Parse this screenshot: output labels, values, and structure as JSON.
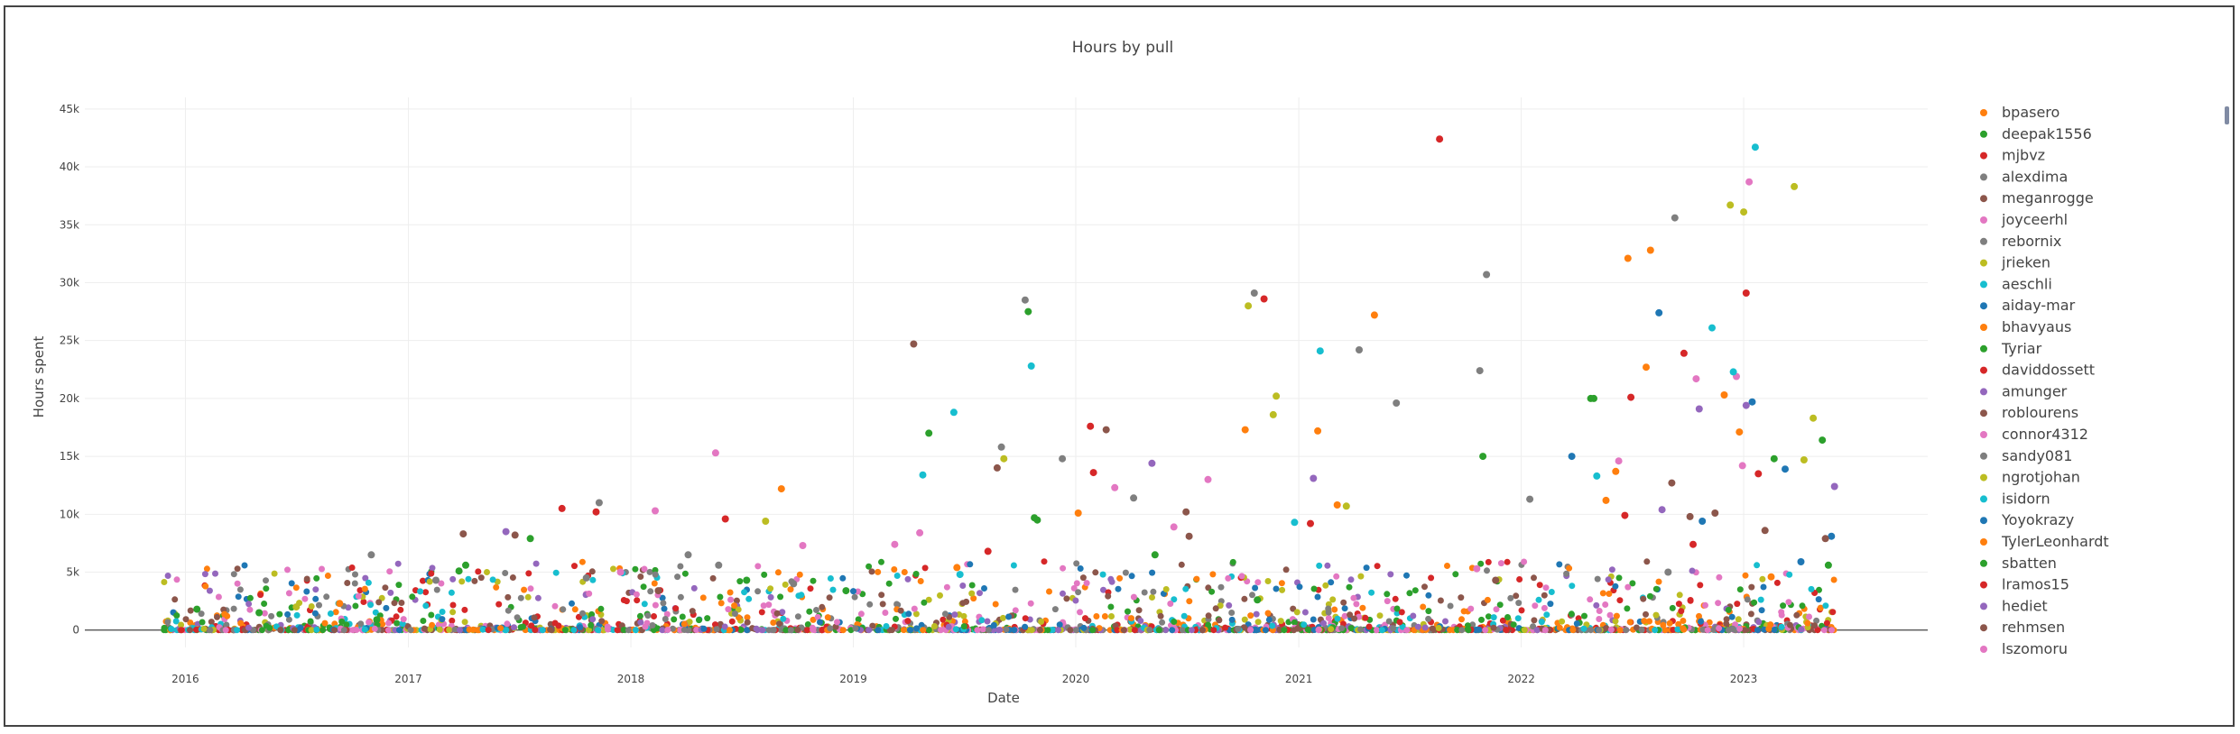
{
  "colors": {
    "palette": [
      "#ff7f0e",
      "#2ca02c",
      "#d62728",
      "#7f7f7f",
      "#8c564b",
      "#e377c2",
      "#7f7f7f",
      "#bcbd22",
      "#17becf",
      "#1f77b4",
      "#ff7f0e",
      "#2ca02c",
      "#d62728",
      "#9467bd",
      "#8c564b",
      "#e377c2",
      "#7f7f7f",
      "#bcbd22",
      "#17becf",
      "#1f77b4",
      "#ff7f0e",
      "#2ca02c",
      "#d62728",
      "#9467bd",
      "#8c564b",
      "#e377c2"
    ]
  },
  "chart_data": {
    "type": "scatter",
    "title": "Hours by pull",
    "xlabel": "Date",
    "ylabel": "Hours spent",
    "x_range": [
      "2015-07-20",
      "2023-10-30"
    ],
    "ylim": [
      -1500,
      46000
    ],
    "x_tick_labels": [
      {
        "date": "2016-01-01",
        "label": "2016"
      },
      {
        "date": "2017-01-01",
        "label": "2017"
      },
      {
        "date": "2018-01-01",
        "label": "2018"
      },
      {
        "date": "2019-01-01",
        "label": "2019"
      },
      {
        "date": "2020-01-01",
        "label": "2020"
      },
      {
        "date": "2021-01-01",
        "label": "2021"
      },
      {
        "date": "2022-01-01",
        "label": "2022"
      },
      {
        "date": "2023-01-01",
        "label": "2023"
      }
    ],
    "y_tick_labels": [
      {
        "value": 0,
        "label": "0"
      },
      {
        "value": 5000,
        "label": "5k"
      },
      {
        "value": 10000,
        "label": "10k"
      },
      {
        "value": 15000,
        "label": "15k"
      },
      {
        "value": 20000,
        "label": "20k"
      },
      {
        "value": 25000,
        "label": "25k"
      },
      {
        "value": 30000,
        "label": "30k"
      },
      {
        "value": 35000,
        "label": "35k"
      },
      {
        "value": 40000,
        "label": "40k"
      },
      {
        "value": 45000,
        "label": "45k"
      }
    ],
    "grid": true,
    "legend_position": "right",
    "series": [
      {
        "name": "bpasero",
        "points": [
          [
            "2016-09-10",
            2300
          ],
          [
            "2018-09-05",
            12200
          ],
          [
            "2019-06-20",
            5400
          ],
          [
            "2020-10-05",
            17300
          ],
          [
            "2021-05-05",
            27200
          ],
          [
            "2022-06-25",
            32100
          ],
          [
            "2022-08-01",
            32800
          ],
          [
            "2022-11-30",
            20300
          ]
        ]
      },
      {
        "name": "deepak1556",
        "points": [
          [
            "2016-05-01",
            1500
          ],
          [
            "2017-04-05",
            5600
          ],
          [
            "2018-07-10",
            4300
          ],
          [
            "2019-05-05",
            17000
          ],
          [
            "2019-10-15",
            27500
          ],
          [
            "2021-10-30",
            15000
          ],
          [
            "2022-04-25",
            20000
          ],
          [
            "2023-05-10",
            16400
          ]
        ]
      },
      {
        "name": "mjbvz",
        "points": [
          [
            "2017-09-10",
            10500
          ],
          [
            "2017-11-05",
            10200
          ],
          [
            "2018-06-05",
            9600
          ],
          [
            "2019-08-10",
            6800
          ],
          [
            "2020-11-05",
            28600
          ],
          [
            "2021-08-20",
            42400
          ],
          [
            "2022-09-25",
            23900
          ],
          [
            "2023-01-05",
            29100
          ]
        ]
      },
      {
        "name": "alexdima",
        "points": [
          [
            "2016-11-01",
            6500
          ],
          [
            "2017-11-10",
            11000
          ],
          [
            "2018-05-25",
            5600
          ],
          [
            "2019-12-10",
            14800
          ],
          [
            "2021-04-10",
            24200
          ],
          [
            "2021-11-05",
            30700
          ],
          [
            "2022-08-30",
            5000
          ]
        ]
      },
      {
        "name": "meganrogge",
        "points": [
          [
            "2019-04-10",
            24700
          ],
          [
            "2020-07-05",
            8100
          ],
          [
            "2021-11-20",
            4300
          ],
          [
            "2022-10-05",
            9800
          ],
          [
            "2023-02-05",
            8600
          ]
        ]
      },
      {
        "name": "joyceerhl",
        "points": [
          [
            "2018-05-20",
            15300
          ],
          [
            "2018-10-10",
            7300
          ],
          [
            "2020-06-10",
            8900
          ],
          [
            "2022-06-10",
            14600
          ],
          [
            "2022-12-20",
            21900
          ],
          [
            "2023-01-10",
            38700
          ]
        ]
      },
      {
        "name": "rebornix",
        "points": [
          [
            "2017-10-20",
            4500
          ],
          [
            "2018-09-25",
            4000
          ],
          [
            "2019-10-10",
            28500
          ],
          [
            "2020-10-20",
            29100
          ],
          [
            "2021-10-25",
            22400
          ],
          [
            "2022-09-10",
            35600
          ]
        ]
      },
      {
        "name": "jrieken",
        "points": [
          [
            "2016-07-01",
            2000
          ],
          [
            "2018-08-10",
            9400
          ],
          [
            "2019-09-05",
            14800
          ],
          [
            "2020-11-25",
            20200
          ],
          [
            "2022-12-10",
            36700
          ],
          [
            "2023-01-01",
            36100
          ],
          [
            "2023-03-25",
            38300
          ],
          [
            "2023-04-25",
            18300
          ]
        ]
      },
      {
        "name": "aeschli",
        "points": [
          [
            "2019-04-25",
            13400
          ],
          [
            "2019-06-15",
            18800
          ],
          [
            "2021-02-05",
            24100
          ],
          [
            "2022-11-10",
            26100
          ],
          [
            "2023-01-20",
            41700
          ]
        ]
      },
      {
        "name": "aiday-mar",
        "points": [
          [
            "2022-03-25",
            15000
          ],
          [
            "2022-08-15",
            27400
          ],
          [
            "2023-01-15",
            19700
          ],
          [
            "2023-05-25",
            8100
          ]
        ]
      },
      {
        "name": "bhavyaus",
        "points": [
          [
            "2021-02-01",
            17200
          ],
          [
            "2022-06-05",
            13700
          ],
          [
            "2022-07-25",
            22700
          ],
          [
            "2022-12-25",
            17100
          ]
        ]
      },
      {
        "name": "Tyriar",
        "points": [
          [
            "2016-01-20",
            1800
          ],
          [
            "2017-03-25",
            5100
          ],
          [
            "2018-12-20",
            3400
          ],
          [
            "2019-10-25",
            9700
          ],
          [
            "2020-10-25",
            2600
          ],
          [
            "2022-04-30",
            20000
          ],
          [
            "2023-02-20",
            14800
          ],
          [
            "2023-05-20",
            5600
          ]
        ]
      },
      {
        "name": "daviddossett",
        "points": [
          [
            "2020-01-25",
            17600
          ],
          [
            "2020-01-30",
            13600
          ],
          [
            "2021-01-20",
            9200
          ],
          [
            "2022-06-30",
            20100
          ]
        ]
      },
      {
        "name": "amunger",
        "points": [
          [
            "2022-10-20",
            19100
          ],
          [
            "2023-01-05",
            19400
          ],
          [
            "2023-05-30",
            12400
          ]
        ]
      },
      {
        "name": "roblourens",
        "points": [
          [
            "2017-04-01",
            8300
          ],
          [
            "2019-08-25",
            14000
          ],
          [
            "2020-02-20",
            17300
          ],
          [
            "2020-06-30",
            10200
          ],
          [
            "2022-11-15",
            10100
          ]
        ]
      },
      {
        "name": "connor4312",
        "points": [
          [
            "2017-12-15",
            5000
          ],
          [
            "2019-04-20",
            8400
          ],
          [
            "2020-03-05",
            12300
          ],
          [
            "2021-10-20",
            5300
          ],
          [
            "2022-10-15",
            21700
          ]
        ]
      },
      {
        "name": "sandy081",
        "points": [
          [
            "2017-02-15",
            4300
          ],
          [
            "2018-04-05",
            6500
          ],
          [
            "2019-09-01",
            15800
          ],
          [
            "2020-04-05",
            11400
          ],
          [
            "2021-06-10",
            19600
          ],
          [
            "2022-01-15",
            11300
          ]
        ]
      },
      {
        "name": "ngrotjohan",
        "points": [
          [
            "2020-10-10",
            28000
          ],
          [
            "2020-11-20",
            18600
          ],
          [
            "2021-03-20",
            10700
          ],
          [
            "2023-04-10",
            14700
          ]
        ]
      },
      {
        "name": "isidorn",
        "points": [
          [
            "2019-06-25",
            4800
          ],
          [
            "2019-10-20",
            22800
          ],
          [
            "2020-12-25",
            9300
          ],
          [
            "2022-05-05",
            13300
          ],
          [
            "2022-12-15",
            22300
          ]
        ]
      },
      {
        "name": "Yoyokrazy",
        "points": [
          [
            "2022-10-25",
            9400
          ],
          [
            "2023-03-10",
            13900
          ],
          [
            "2023-04-05",
            5900
          ]
        ]
      },
      {
        "name": "TylerLeonhardt",
        "points": [
          [
            "2020-01-05",
            10100
          ],
          [
            "2021-03-05",
            10800
          ],
          [
            "2022-05-20",
            11200
          ],
          [
            "2023-02-15",
            4600
          ]
        ]
      },
      {
        "name": "sbatten",
        "points": [
          [
            "2016-11-10",
            900
          ],
          [
            "2017-07-20",
            7900
          ],
          [
            "2019-10-30",
            9500
          ],
          [
            "2020-05-10",
            6500
          ]
        ]
      },
      {
        "name": "lramos15",
        "points": [
          [
            "2022-06-20",
            9900
          ],
          [
            "2022-10-10",
            7400
          ],
          [
            "2023-01-25",
            13500
          ]
        ]
      },
      {
        "name": "hediet",
        "points": [
          [
            "2017-06-10",
            8500
          ],
          [
            "2020-05-05",
            14400
          ],
          [
            "2021-01-25",
            13100
          ],
          [
            "2022-08-20",
            10400
          ]
        ]
      },
      {
        "name": "rehmsen",
        "points": [
          [
            "2017-06-25",
            8200
          ],
          [
            "2018-02-15",
            3400
          ],
          [
            "2022-09-05",
            12700
          ],
          [
            "2023-05-15",
            7900
          ]
        ]
      },
      {
        "name": "lszomoru",
        "points": [
          [
            "2018-02-10",
            10300
          ],
          [
            "2019-03-10",
            7400
          ],
          [
            "2020-08-05",
            13000
          ],
          [
            "2022-12-30",
            14200
          ]
        ]
      }
    ]
  }
}
